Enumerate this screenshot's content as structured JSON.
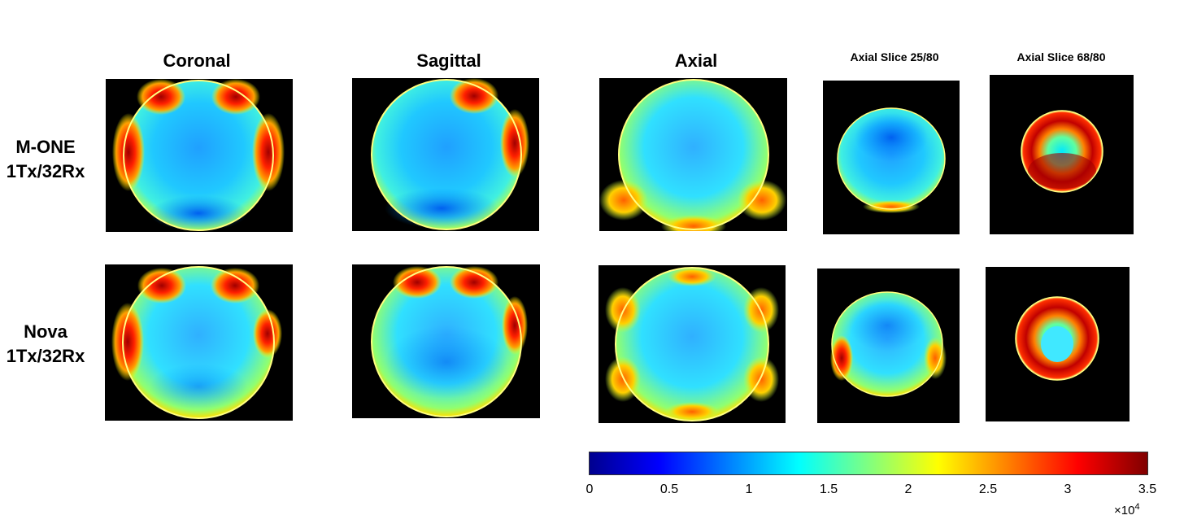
{
  "columns": [
    {
      "title": "Coronal"
    },
    {
      "title": "Sagittal"
    },
    {
      "title": "Axial"
    },
    {
      "title": "Axial Slice 25/80"
    },
    {
      "title": "Axial Slice 68/80"
    }
  ],
  "rows": [
    {
      "label_line1": "M-ONE",
      "label_line2": "1Tx/32Rx"
    },
    {
      "label_line1": "Nova",
      "label_line2": "1Tx/32Rx"
    }
  ],
  "colorbar": {
    "colormap": "jet",
    "ticks": [
      "0",
      "0.5",
      "1",
      "1.5",
      "2",
      "2.5",
      "3",
      "3.5"
    ],
    "exponent_base": "×10",
    "exponent": "4"
  }
}
